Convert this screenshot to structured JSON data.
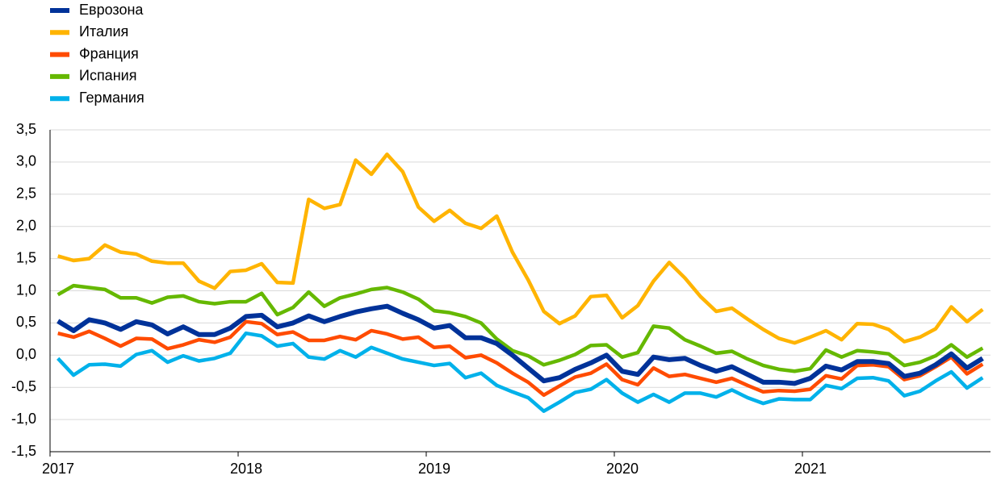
{
  "chart_data": {
    "type": "line",
    "categories": [
      "2017",
      null,
      null,
      null,
      null,
      null,
      null,
      null,
      null,
      null,
      null,
      null,
      "2018",
      null,
      null,
      null,
      null,
      null,
      null,
      null,
      null,
      null,
      null,
      null,
      "2019",
      null,
      null,
      null,
      null,
      null,
      null,
      null,
      null,
      null,
      null,
      null,
      "2020",
      null,
      null,
      null,
      null,
      null,
      null,
      null,
      null,
      null,
      null,
      null,
      "2021",
      null,
      null,
      null,
      null,
      null,
      null,
      null,
      null,
      null,
      null,
      null
    ],
    "series": [
      {
        "name": "Еврозона",
        "color": "#003299",
        "values": [
          0.53,
          0.38,
          0.55,
          0.5,
          0.4,
          0.52,
          0.47,
          0.33,
          0.44,
          0.32,
          0.32,
          0.42,
          0.6,
          0.62,
          0.44,
          0.5,
          0.61,
          0.52,
          0.6,
          0.67,
          0.72,
          0.76,
          0.65,
          0.55,
          0.42,
          0.46,
          0.27,
          0.27,
          0.18,
          0.0,
          -0.2,
          -0.4,
          -0.35,
          -0.22,
          -0.12,
          0.0,
          -0.25,
          -0.3,
          -0.03,
          -0.07,
          -0.05,
          -0.16,
          -0.25,
          -0.18,
          -0.3,
          -0.42,
          -0.42,
          -0.44,
          -0.36,
          -0.17,
          -0.23,
          -0.1,
          -0.1,
          -0.13,
          -0.33,
          -0.28,
          -0.15,
          0.02,
          -0.2,
          -0.05
        ]
      },
      {
        "name": "Италия",
        "color": "#ffb400",
        "values": [
          1.54,
          1.47,
          1.5,
          1.71,
          1.6,
          1.57,
          1.46,
          1.43,
          1.43,
          1.15,
          1.04,
          1.3,
          1.32,
          1.42,
          1.13,
          1.12,
          2.42,
          2.28,
          2.34,
          3.03,
          2.81,
          3.12,
          2.85,
          2.3,
          2.08,
          2.25,
          2.05,
          1.97,
          2.16,
          1.6,
          1.17,
          0.68,
          0.49,
          0.61,
          0.91,
          0.93,
          0.58,
          0.77,
          1.15,
          1.44,
          1.2,
          0.91,
          0.68,
          0.73,
          0.56,
          0.4,
          0.26,
          0.19,
          0.28,
          0.38,
          0.24,
          0.49,
          0.48,
          0.4,
          0.21,
          0.28,
          0.41,
          0.75,
          0.52,
          0.71
        ]
      },
      {
        "name": "Франция",
        "color": "#ff4b00",
        "values": [
          0.34,
          0.28,
          0.37,
          0.26,
          0.14,
          0.26,
          0.25,
          0.1,
          0.16,
          0.24,
          0.2,
          0.28,
          0.52,
          0.49,
          0.32,
          0.36,
          0.23,
          0.23,
          0.29,
          0.24,
          0.38,
          0.33,
          0.25,
          0.28,
          0.12,
          0.14,
          -0.04,
          0.0,
          -0.12,
          -0.28,
          -0.42,
          -0.62,
          -0.48,
          -0.34,
          -0.28,
          -0.14,
          -0.38,
          -0.46,
          -0.2,
          -0.33,
          -0.3,
          -0.36,
          -0.42,
          -0.36,
          -0.47,
          -0.57,
          -0.55,
          -0.56,
          -0.53,
          -0.32,
          -0.37,
          -0.16,
          -0.15,
          -0.18,
          -0.38,
          -0.32,
          -0.18,
          -0.03,
          -0.29,
          -0.14
        ]
      },
      {
        "name": "Испания",
        "color": "#65b800",
        "values": [
          0.94,
          1.08,
          1.05,
          1.02,
          0.89,
          0.89,
          0.81,
          0.9,
          0.92,
          0.83,
          0.8,
          0.83,
          0.83,
          0.96,
          0.63,
          0.74,
          0.98,
          0.76,
          0.89,
          0.95,
          1.02,
          1.05,
          0.98,
          0.87,
          0.69,
          0.66,
          0.6,
          0.5,
          0.25,
          0.07,
          -0.01,
          -0.15,
          -0.08,
          0.01,
          0.15,
          0.16,
          -0.03,
          0.04,
          0.45,
          0.42,
          0.24,
          0.14,
          0.03,
          0.06,
          -0.06,
          -0.16,
          -0.22,
          -0.25,
          -0.21,
          0.08,
          -0.03,
          0.07,
          0.05,
          0.02,
          -0.16,
          -0.11,
          -0.01,
          0.16,
          -0.03,
          0.11
        ]
      },
      {
        "name": "Германия",
        "color": "#00b1ea",
        "values": [
          -0.05,
          -0.31,
          -0.15,
          -0.14,
          -0.17,
          0.01,
          0.07,
          -0.11,
          -0.01,
          -0.09,
          -0.05,
          0.03,
          0.34,
          0.3,
          0.14,
          0.18,
          -0.03,
          -0.06,
          0.07,
          -0.03,
          0.12,
          0.03,
          -0.06,
          -0.11,
          -0.16,
          -0.13,
          -0.35,
          -0.28,
          -0.47,
          -0.57,
          -0.66,
          -0.87,
          -0.73,
          -0.58,
          -0.53,
          -0.38,
          -0.59,
          -0.73,
          -0.61,
          -0.73,
          -0.59,
          -0.59,
          -0.65,
          -0.54,
          -0.66,
          -0.75,
          -0.68,
          -0.69,
          -0.69,
          -0.47,
          -0.52,
          -0.36,
          -0.35,
          -0.4,
          -0.63,
          -0.56,
          -0.4,
          -0.26,
          -0.51,
          -0.35
        ]
      }
    ],
    "ylim": [
      -1.5,
      3.5
    ],
    "yticks": [
      {
        "value": -1.5,
        "label": "-1,5"
      },
      {
        "value": -1,
        "label": "-1,0"
      },
      {
        "value": -0.5,
        "label": "-0,5"
      },
      {
        "value": 0,
        "label": "0,0"
      },
      {
        "value": 0.5,
        "label": "0,5"
      },
      {
        "value": 1,
        "label": "1,0"
      },
      {
        "value": 1.5,
        "label": "1,5"
      },
      {
        "value": 2,
        "label": "2,0"
      },
      {
        "value": 2.5,
        "label": "2,5"
      },
      {
        "value": 3,
        "label": "3,0"
      },
      {
        "value": 3.5,
        "label": "3,5"
      }
    ],
    "grid": true,
    "legend": "top-left"
  }
}
